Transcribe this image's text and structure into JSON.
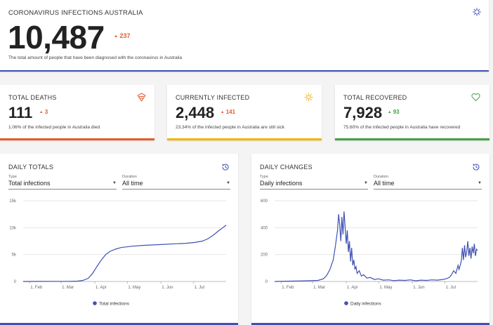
{
  "hero": {
    "title": "CORONAVIRUS INFECTIONS AUSTRALIA",
    "value": "10,487",
    "delta": "237",
    "description": "The total amount of people that have been diagnosed with the coronavirus in Australia",
    "icon": "virus-icon",
    "accent": "#3f51b5"
  },
  "stats": [
    {
      "title": "TOTAL DEATHS",
      "value": "111",
      "delta": "3",
      "description": "1.06% of the infected people in Australia died",
      "icon": "coffin-icon",
      "accent": "#e65a2a"
    },
    {
      "title": "CURRENTLY INFECTED",
      "value": "2,448",
      "delta": "141",
      "description": "23.34% of the infected people in Australia are still sick",
      "icon": "sun-virus-icon",
      "accent": "#f4b400"
    },
    {
      "title": "TOTAL RECOVERED",
      "value": "7,928",
      "delta": "93",
      "description": "75.60% of the infected people in Australia have recovered",
      "icon": "heart-icon",
      "accent": "#43a047"
    }
  ],
  "panels": [
    {
      "title": "DAILY TOTALS",
      "type_label": "Type",
      "type_value": "Total infections",
      "duration_label": "Duration",
      "duration_value": "All time",
      "legend": "Total infections",
      "icon": "history-icon"
    },
    {
      "title": "DAILY CHANGES",
      "type_label": "Type",
      "type_value": "Daily infections",
      "duration_label": "Duration",
      "duration_value": "All time",
      "legend": "Daily infections",
      "icon": "history-icon"
    }
  ],
  "chart_data": [
    {
      "type": "line",
      "x_ticks": [
        "1. Feb",
        "1. Mar",
        "1. Apr",
        "1. May",
        "1. Jun",
        "1. Jul"
      ],
      "y_ticks": [
        "0",
        "5k",
        "10k",
        "15k"
      ],
      "ylim": [
        0,
        15000
      ],
      "series": [
        {
          "name": "Total infections",
          "color": "#3f51b5",
          "points": [
            [
              0,
              0
            ],
            [
              14,
              15
            ],
            [
              28,
              25
            ],
            [
              42,
              30
            ],
            [
              50,
              60
            ],
            [
              55,
              200
            ],
            [
              60,
              600
            ],
            [
              64,
              1500
            ],
            [
              68,
              2800
            ],
            [
              72,
              4000
            ],
            [
              76,
              5000
            ],
            [
              80,
              5600
            ],
            [
              85,
              6000
            ],
            [
              90,
              6300
            ],
            [
              100,
              6550
            ],
            [
              110,
              6700
            ],
            [
              120,
              6800
            ],
            [
              130,
              6900
            ],
            [
              140,
              7000
            ],
            [
              150,
              7100
            ],
            [
              158,
              7250
            ],
            [
              165,
              7500
            ],
            [
              170,
              7900
            ],
            [
              175,
              8600
            ],
            [
              180,
              9400
            ],
            [
              184,
              10000
            ],
            [
              187,
              10487
            ]
          ]
        }
      ]
    },
    {
      "type": "line",
      "x_ticks": [
        "1. Feb",
        "1. Mar",
        "1. Apr",
        "1. May",
        "1. Jun",
        "1. Jul"
      ],
      "y_ticks": [
        "0",
        "200",
        "400",
        "600"
      ],
      "ylim": [
        0,
        600
      ],
      "series": [
        {
          "name": "Daily infections",
          "color": "#3f51b5",
          "points": [
            [
              0,
              0
            ],
            [
              10,
              2
            ],
            [
              20,
              3
            ],
            [
              30,
              5
            ],
            [
              40,
              8
            ],
            [
              45,
              20
            ],
            [
              48,
              45
            ],
            [
              51,
              90
            ],
            [
              54,
              160
            ],
            [
              56,
              260
            ],
            [
              58,
              380
            ],
            [
              59,
              500
            ],
            [
              60,
              420
            ],
            [
              61,
              300
            ],
            [
              62,
              480
            ],
            [
              63,
              350
            ],
            [
              64,
              520
            ],
            [
              65,
              400
            ],
            [
              66,
              280
            ],
            [
              67,
              380
            ],
            [
              68,
              220
            ],
            [
              69,
              300
            ],
            [
              70,
              150
            ],
            [
              71,
              250
            ],
            [
              72,
              120
            ],
            [
              73,
              160
            ],
            [
              74,
              90
            ],
            [
              75,
              110
            ],
            [
              76,
              60
            ],
            [
              78,
              80
            ],
            [
              80,
              40
            ],
            [
              82,
              50
            ],
            [
              85,
              25
            ],
            [
              88,
              30
            ],
            [
              92,
              15
            ],
            [
              96,
              20
            ],
            [
              100,
              10
            ],
            [
              105,
              12
            ],
            [
              110,
              6
            ],
            [
              115,
              10
            ],
            [
              120,
              8
            ],
            [
              125,
              12
            ],
            [
              130,
              5
            ],
            [
              135,
              10
            ],
            [
              140,
              8
            ],
            [
              145,
              12
            ],
            [
              150,
              10
            ],
            [
              155,
              15
            ],
            [
              158,
              20
            ],
            [
              161,
              30
            ],
            [
              163,
              50
            ],
            [
              165,
              80
            ],
            [
              167,
              60
            ],
            [
              169,
              120
            ],
            [
              170,
              90
            ],
            [
              172,
              150
            ],
            [
              173,
              250
            ],
            [
              174,
              160
            ],
            [
              175,
              270
            ],
            [
              176,
              180
            ],
            [
              177,
              220
            ],
            [
              178,
              300
            ],
            [
              179,
              190
            ],
            [
              180,
              250
            ],
            [
              181,
              170
            ],
            [
              182,
              260
            ],
            [
              183,
              210
            ],
            [
              184,
              280
            ],
            [
              185,
              190
            ],
            [
              186,
              240
            ],
            [
              187,
              230
            ]
          ]
        }
      ]
    }
  ]
}
